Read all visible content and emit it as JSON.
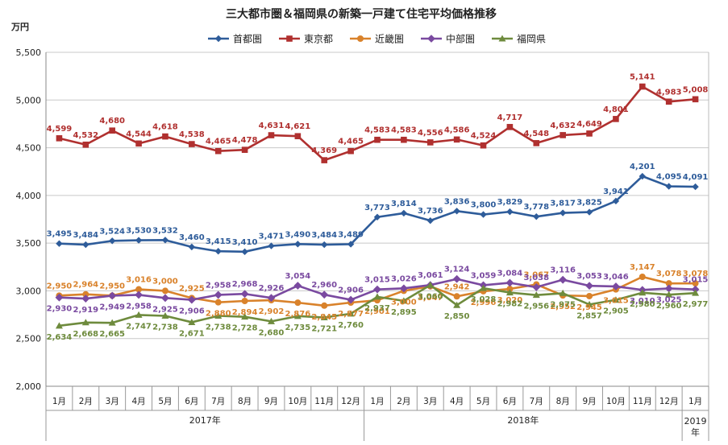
{
  "chart_data": {
    "type": "line",
    "title": "三大都市圏＆福岡県の新築一戸建て住宅平均価格推移",
    "unit_label": "万円",
    "ylim": [
      2000,
      5500
    ],
    "y_ticks": [
      "2,000",
      "2,500",
      "3,000",
      "3,500",
      "4,000",
      "4,500",
      "5,000",
      "5,500"
    ],
    "y_tick_values": [
      2000,
      2500,
      3000,
      3500,
      4000,
      4500,
      5000,
      5500
    ],
    "categories": [
      "1月",
      "2月",
      "3月",
      "4月",
      "5月",
      "6月",
      "7月",
      "8月",
      "9月",
      "10月",
      "11月",
      "12月",
      "1月",
      "2月",
      "3月",
      "4月",
      "5月",
      "6月",
      "7月",
      "8月",
      "9月",
      "10月",
      "11月",
      "12月",
      "1月"
    ],
    "year_groups": [
      {
        "label": "2017年",
        "start": 0,
        "end": 11
      },
      {
        "label": "2018年",
        "start": 12,
        "end": 23
      },
      {
        "label": "2019",
        "label2": "年",
        "start": 24,
        "end": 24
      }
    ],
    "grid": true,
    "legend_position": "top",
    "series": [
      {
        "name": "首都圏",
        "color": "#2E5C9A",
        "marker": "diamond",
        "label_position": "above",
        "values": [
          3495,
          3484,
          3524,
          3530,
          3532,
          3460,
          3415,
          3410,
          3471,
          3490,
          3484,
          3489,
          3773,
          3814,
          3736,
          3836,
          3800,
          3829,
          3778,
          3817,
          3825,
          3941,
          4201,
          4095,
          4091
        ],
        "labels": [
          "3,495",
          "3,484",
          "3,524",
          "3,530",
          "3,532",
          "3,460",
          "3,415",
          "3,410",
          "3,471",
          "3,490",
          "3,484",
          "3,489",
          "3,773",
          "3,814",
          "3,736",
          "3,836",
          "3,800",
          "3,829",
          "3,778",
          "3,817",
          "3,825",
          "3,941",
          "4,201",
          "4,095",
          "4,091"
        ]
      },
      {
        "name": "東京都",
        "color": "#B0302F",
        "marker": "square",
        "label_position": "above",
        "values": [
          4599,
          4532,
          4680,
          4544,
          4618,
          4538,
          4465,
          4478,
          4631,
          4621,
          4369,
          4465,
          4583,
          4583,
          4556,
          4586,
          4524,
          4717,
          4548,
          4632,
          4649,
          4801,
          5141,
          4983,
          5008
        ],
        "labels": [
          "4,599",
          "4,532",
          "4,680",
          "4,544",
          "4,618",
          "4,538",
          "4,465",
          "4,478",
          "4,631",
          "4,621",
          "4,369",
          "4,465",
          "4,583",
          "4,583",
          "4,556",
          "4,586",
          "4,524",
          "4,717",
          "4,548",
          "4,632",
          "4,649",
          "4,801",
          "5,141",
          "4,983",
          "5,008"
        ]
      },
      {
        "name": "近畿圏",
        "color": "#D9822B",
        "marker": "circle",
        "label_position": "mixed",
        "values": [
          2950,
          2964,
          2950,
          3016,
          3000,
          2925,
          2880,
          2894,
          2902,
          2876,
          2845,
          2877,
          2901,
          3000,
          3047,
          2942,
          2996,
          3020,
          3067,
          2952,
          2945,
          3015,
          3147,
          3078,
          3078
        ],
        "labels": [
          "2,950",
          "2,964",
          "2,950",
          "3,016",
          "3,000",
          "2,925",
          "2,880",
          "2,894",
          "2,902",
          "2,876",
          "2,845",
          "2,877",
          "2,901",
          "3,000",
          "3,047",
          "2,942",
          "2,996",
          "3,020",
          "3,067",
          "2,952",
          "2,945",
          "3,015",
          "3,147",
          "3,078",
          "3,078"
        ],
        "label_above": [
          true,
          true,
          true,
          true,
          true,
          true,
          false,
          false,
          false,
          false,
          false,
          false,
          false,
          false,
          false,
          true,
          false,
          false,
          true,
          false,
          false,
          false,
          true,
          true,
          true
        ]
      },
      {
        "name": "中部圏",
        "color": "#7A4AA0",
        "marker": "x",
        "label_position": "mixed",
        "values": [
          2930,
          2919,
          2949,
          2958,
          2925,
          2906,
          2958,
          2968,
          2926,
          3054,
          2960,
          2906,
          3015,
          3026,
          3061,
          3124,
          3059,
          3084,
          3038,
          3116,
          3053,
          3046,
          3010,
          3025,
          3015
        ],
        "labels": [
          "2,930",
          "2,919",
          "2,949",
          "2,958",
          "2,925",
          "2,906",
          "2,958",
          "2,968",
          "2,926",
          "3,054",
          "2,960",
          "2,906",
          "3,015",
          "3,026",
          "3,061",
          "3,124",
          "3,059",
          "3,084",
          "3,038",
          "3,116",
          "3,053",
          "3,046",
          "3,010",
          "3,025",
          "3,015"
        ],
        "label_above": [
          false,
          false,
          false,
          false,
          false,
          false,
          true,
          true,
          true,
          true,
          true,
          true,
          true,
          true,
          true,
          true,
          true,
          true,
          true,
          true,
          true,
          true,
          false,
          false,
          true
        ]
      },
      {
        "name": "福岡県",
        "color": "#6E8B3D",
        "marker": "triangle",
        "label_position": "mixed",
        "values": [
          2634,
          2668,
          2665,
          2747,
          2738,
          2671,
          2738,
          2728,
          2680,
          2735,
          2721,
          2760,
          2937,
          2895,
          3060,
          2850,
          3028,
          2982,
          2956,
          2975,
          2857,
          2905,
          2980,
          2960,
          2977
        ],
        "labels": [
          "2,634",
          "2,668",
          "2,665",
          "2,747",
          "2,738",
          "2,671",
          "2,738",
          "2,728",
          "2,680",
          "2,735",
          "2,721",
          "2,760",
          "2,937",
          "2,895",
          "3,060",
          "2,850",
          "3,028",
          "2,982",
          "2,956",
          "2,975",
          "2,857",
          "2,905",
          "2,980",
          "2,960",
          "2,977"
        ],
        "label_above": [
          false,
          false,
          false,
          false,
          false,
          false,
          false,
          false,
          false,
          false,
          false,
          false,
          false,
          false,
          false,
          false,
          false,
          false,
          false,
          false,
          false,
          false,
          false,
          false,
          false
        ]
      }
    ]
  }
}
